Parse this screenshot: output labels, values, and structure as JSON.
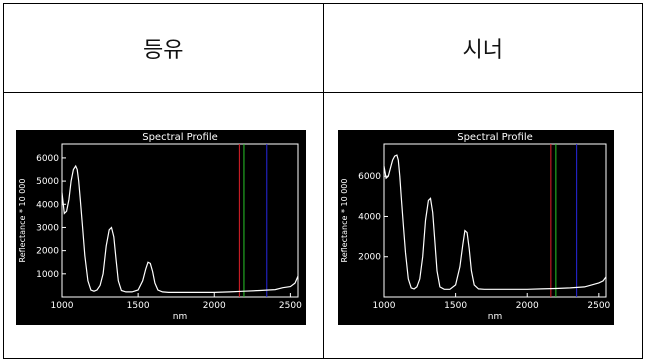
{
  "table": {
    "headers": [
      "등유",
      "시너"
    ]
  },
  "colors": {
    "plot_bg": "#000000",
    "axis": "#ffffff",
    "curve": "#ffffff",
    "line_red": "#e0202a",
    "line_green": "#28c828",
    "line_blue": "#2828e0"
  },
  "chart_data": [
    {
      "type": "line",
      "title": "Spectral Profile",
      "xlabel": "nm",
      "ylabel": "Reflectance * 10 000",
      "xlim": [
        1000,
        2550
      ],
      "ylim": [
        0,
        6600
      ],
      "xticks": [
        1000,
        1500,
        2000,
        2500
      ],
      "yticks": [
        1000,
        2000,
        3000,
        4000,
        5000,
        6000
      ],
      "vertical_lines": [
        {
          "x": 2165,
          "color": "red"
        },
        {
          "x": 2195,
          "color": "green"
        },
        {
          "x": 2345,
          "color": "blue"
        }
      ],
      "series": [
        {
          "x": [
            1000,
            1015,
            1030,
            1045,
            1060,
            1075,
            1090,
            1100,
            1110,
            1120,
            1135,
            1150,
            1170,
            1190,
            1210,
            1230,
            1250,
            1270,
            1290,
            1310,
            1325,
            1340,
            1355,
            1370,
            1390,
            1420,
            1460,
            1500,
            1530,
            1550,
            1565,
            1580,
            1595,
            1610,
            1630,
            1660,
            1700,
            1800,
            1900,
            2000,
            2100,
            2200,
            2300,
            2400,
            2450,
            2500,
            2530,
            2550
          ],
          "y": [
            4500,
            3600,
            3700,
            4200,
            5000,
            5500,
            5650,
            5500,
            5000,
            4200,
            3000,
            1800,
            700,
            300,
            250,
            300,
            500,
            1000,
            2200,
            2900,
            3000,
            2600,
            1600,
            700,
            280,
            220,
            220,
            300,
            700,
            1200,
            1500,
            1450,
            1100,
            600,
            300,
            220,
            200,
            200,
            200,
            200,
            220,
            250,
            280,
            320,
            400,
            450,
            600,
            900
          ]
        }
      ]
    },
    {
      "type": "line",
      "title": "Spectral Profile",
      "xlabel": "nm",
      "ylabel": "Reflectance * 10 000",
      "xlim": [
        1000,
        2550
      ],
      "ylim": [
        0,
        7600
      ],
      "xticks": [
        1000,
        1500,
        2000,
        2500
      ],
      "yticks": [
        2000,
        4000,
        6000
      ],
      "vertical_lines": [
        {
          "x": 2165,
          "color": "red"
        },
        {
          "x": 2200,
          "color": "green"
        },
        {
          "x": 2345,
          "color": "blue"
        }
      ],
      "series": [
        {
          "x": [
            1000,
            1015,
            1030,
            1045,
            1060,
            1075,
            1090,
            1100,
            1110,
            1120,
            1135,
            1150,
            1170,
            1190,
            1210,
            1230,
            1250,
            1270,
            1290,
            1310,
            1325,
            1340,
            1355,
            1370,
            1390,
            1420,
            1460,
            1500,
            1530,
            1550,
            1565,
            1580,
            1595,
            1610,
            1630,
            1660,
            1700,
            1800,
            1900,
            2000,
            2100,
            2200,
            2300,
            2400,
            2450,
            2500,
            2530,
            2550
          ],
          "y": [
            6500,
            5900,
            6000,
            6400,
            6800,
            7000,
            7050,
            6800,
            6000,
            5000,
            3600,
            2200,
            900,
            450,
            400,
            500,
            900,
            2000,
            3800,
            4800,
            4900,
            4200,
            2800,
            1300,
            500,
            380,
            380,
            600,
            1500,
            2600,
            3300,
            3200,
            2400,
            1300,
            600,
            400,
            380,
            380,
            380,
            380,
            400,
            420,
            450,
            500,
            600,
            700,
            800,
            1000
          ]
        }
      ]
    }
  ]
}
